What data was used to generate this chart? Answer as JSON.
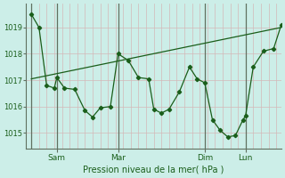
{
  "xlabel": "Pression niveau de la mer( hPa )",
  "bg_color": "#cceee8",
  "line_color": "#1a5e1a",
  "tick_label_color": "#1a5e1a",
  "xlabel_color": "#1a5e1a",
  "yticks": [
    1015,
    1016,
    1017,
    1018,
    1019
  ],
  "ylim": [
    1014.4,
    1019.9
  ],
  "xlim": [
    -2,
    98
  ],
  "xtick_positions": [
    10,
    34,
    68,
    84
  ],
  "xtick_labels": [
    "Sam",
    "Mar",
    "Dim",
    "Lun"
  ],
  "vline_positions": [
    0,
    10,
    34,
    68,
    84
  ],
  "trend_x": [
    0,
    98
  ],
  "trend_y": [
    1017.05,
    1019.0
  ],
  "series2_x": [
    0,
    3,
    6,
    9,
    10,
    13,
    17,
    21,
    24,
    27,
    31,
    34,
    38,
    42,
    46,
    48,
    51,
    54,
    58,
    62,
    65,
    68,
    71,
    74,
    77,
    80,
    83,
    84,
    87,
    91,
    95,
    98
  ],
  "series2_y": [
    1019.5,
    1019.0,
    1016.8,
    1016.7,
    1017.1,
    1016.7,
    1016.65,
    1015.85,
    1015.6,
    1015.95,
    1016.0,
    1018.0,
    1017.75,
    1017.1,
    1017.05,
    1015.9,
    1015.75,
    1015.9,
    1016.55,
    1017.5,
    1017.05,
    1016.9,
    1015.5,
    1015.1,
    1014.85,
    1014.9,
    1015.5,
    1015.65,
    1017.5,
    1018.1,
    1018.2,
    1019.1
  ]
}
